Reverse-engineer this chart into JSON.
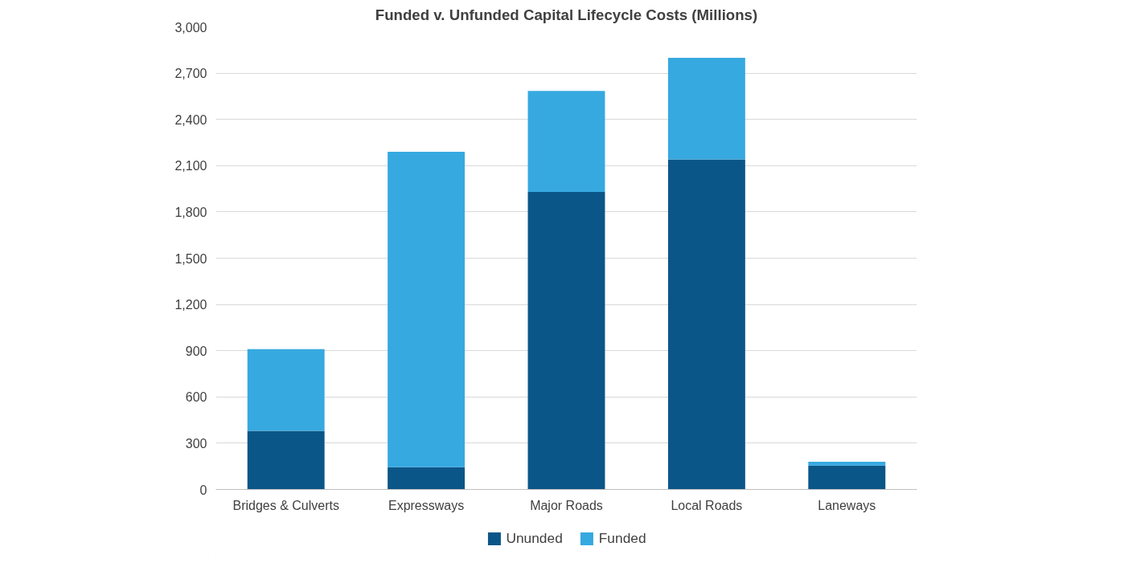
{
  "chart_data": {
    "type": "bar",
    "title": "Funded v. Unfunded Capital Lifecycle Costs (Millions)",
    "categories": [
      "Bridges & Culverts",
      "Expressways",
      "Major Roads",
      "Local Roads",
      "Laneways"
    ],
    "stacked": true,
    "series": [
      {
        "name": "Ununded",
        "color": "#0b5688",
        "values": [
          380,
          145,
          1930,
          2140,
          155
        ]
      },
      {
        "name": "Funded",
        "color": "#36a9e0",
        "values": [
          530,
          2045,
          655,
          660,
          25
        ]
      }
    ],
    "ylim": [
      0,
      3000
    ],
    "yticks": [
      0,
      300,
      600,
      900,
      {
        "value": 1200,
        "label": "1,200"
      },
      {
        "value": 1500,
        "label": "1,500"
      },
      {
        "value": 1800,
        "label": "1,800"
      },
      {
        "value": 2100,
        "label": "2,100"
      },
      {
        "value": 2400,
        "label": "2,400"
      },
      {
        "value": 2700,
        "label": "2,700"
      },
      {
        "value": 3000,
        "label": "3,000"
      }
    ],
    "grid": "y",
    "legend": "bottom"
  }
}
